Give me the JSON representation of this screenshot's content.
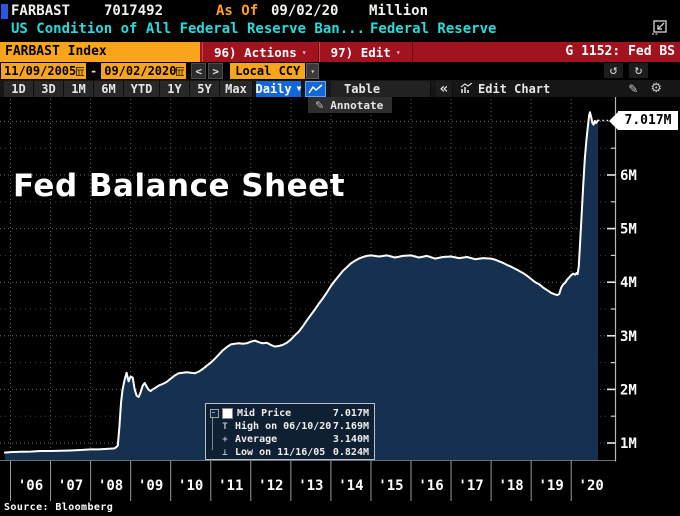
{
  "header": {
    "ticker": "FARBAST",
    "figure": "7017492",
    "as_of_label": "As Of",
    "as_of_date": "09/02/20",
    "unit": "Million",
    "description": "US Condition of All Federal Reserve Ban...",
    "provider": "Federal Reserve"
  },
  "titlebar": {
    "security": "FARBAST Index",
    "actions_label": "96) Actions",
    "edit_label": "97) Edit",
    "page_label": "G 1152: Fed BS"
  },
  "daterange": {
    "start": "11/09/2005",
    "dash": "-",
    "end": "09/02/2020",
    "prev": "<",
    "next": ">",
    "currency": "Local CCY",
    "undo": "↺",
    "redo": "↻"
  },
  "toolbar": {
    "ranges": [
      "1D",
      "3D",
      "1M",
      "6M",
      "YTD",
      "1Y",
      "5Y",
      "Max"
    ],
    "period": "Daily",
    "table_label": "Table",
    "collapse": "«",
    "edit_chart_label": "Edit Chart",
    "annotate_label": "Annotate",
    "gear": "⚙",
    "pencil": "✎"
  },
  "chart": {
    "big_title": "Fed Balance Sheet",
    "last_value_tag": "7.017M",
    "source": "Source: Bloomberg",
    "legend_rows": [
      {
        "marker": "swatch",
        "label": "Mid Price",
        "value": "7.017M"
      },
      {
        "marker": "high",
        "label": "High on 06/10/20",
        "value": "7.169M"
      },
      {
        "marker": "avg",
        "label": "Average",
        "value": "3.140M"
      },
      {
        "marker": "low",
        "label": "Low on 11/16/05",
        "value": "0.824M"
      }
    ]
  },
  "colors": {
    "amber": "#f8a51b",
    "red_bar": "#a0131f",
    "blue_button": "#1466d9",
    "cyan_text": "#2bdbdb",
    "area_fill": "#16314f",
    "line": "#ffffff"
  },
  "chart_data": {
    "type": "area",
    "title": "Fed Balance Sheet",
    "series_name": "Mid Price",
    "unit": "Million",
    "x_tick_labels": [
      "'06",
      "'07",
      "'08",
      "'09",
      "'10",
      "'11",
      "'12",
      "'13",
      "'14",
      "'15",
      "'16",
      "'17",
      "'18",
      "'19",
      "'20"
    ],
    "x_tick_years": [
      2006,
      2007,
      2008,
      2009,
      2010,
      2011,
      2012,
      2013,
      2014,
      2015,
      2016,
      2017,
      2018,
      2019,
      2020
    ],
    "y_tick_labels": [
      "1M",
      "2M",
      "3M",
      "4M",
      "5M",
      "6M"
    ],
    "y_tick_values": [
      1,
      2,
      3,
      4,
      5,
      6
    ],
    "y_minor_values": [
      1.5,
      2.5,
      3.5,
      4.5,
      5.5,
      6.5
    ],
    "ylim": [
      0.67,
      7.45
    ],
    "xlim": [
      2005.86,
      2021.1
    ],
    "grid": "dotted",
    "legend_position": "inside-bottom-left-box",
    "stats": {
      "last": 7.017,
      "last_date": "09/02/20",
      "high": 7.169,
      "high_date": "06/10/20",
      "average": 3.14,
      "low": 0.824,
      "low_date": "11/16/05"
    },
    "points": [
      [
        2005.86,
        0.82
      ],
      [
        2006.0,
        0.83
      ],
      [
        2006.25,
        0.835
      ],
      [
        2006.5,
        0.84
      ],
      [
        2006.75,
        0.85
      ],
      [
        2007.0,
        0.85
      ],
      [
        2007.25,
        0.855
      ],
      [
        2007.5,
        0.86
      ],
      [
        2007.75,
        0.87
      ],
      [
        2008.0,
        0.88
      ],
      [
        2008.2,
        0.88
      ],
      [
        2008.4,
        0.89
      ],
      [
        2008.6,
        0.9
      ],
      [
        2008.68,
        0.95
      ],
      [
        2008.72,
        1.3
      ],
      [
        2008.76,
        1.75
      ],
      [
        2008.8,
        2.0
      ],
      [
        2008.85,
        2.18
      ],
      [
        2008.9,
        2.31
      ],
      [
        2008.95,
        2.15
      ],
      [
        2009.0,
        2.24
      ],
      [
        2009.05,
        2.22
      ],
      [
        2009.1,
        2.0
      ],
      [
        2009.15,
        1.88
      ],
      [
        2009.2,
        1.86
      ],
      [
        2009.25,
        1.95
      ],
      [
        2009.3,
        2.07
      ],
      [
        2009.35,
        2.12
      ],
      [
        2009.4,
        2.05
      ],
      [
        2009.45,
        1.99
      ],
      [
        2009.5,
        1.97
      ],
      [
        2009.55,
        2.0
      ],
      [
        2009.6,
        2.02
      ],
      [
        2009.7,
        2.07
      ],
      [
        2009.8,
        2.1
      ],
      [
        2009.9,
        2.14
      ],
      [
        2010.0,
        2.2
      ],
      [
        2010.1,
        2.26
      ],
      [
        2010.2,
        2.3
      ],
      [
        2010.3,
        2.31
      ],
      [
        2010.4,
        2.32
      ],
      [
        2010.5,
        2.31
      ],
      [
        2010.6,
        2.3
      ],
      [
        2010.7,
        2.33
      ],
      [
        2010.8,
        2.38
      ],
      [
        2010.9,
        2.44
      ],
      [
        2011.0,
        2.5
      ],
      [
        2011.1,
        2.57
      ],
      [
        2011.2,
        2.65
      ],
      [
        2011.3,
        2.73
      ],
      [
        2011.4,
        2.79
      ],
      [
        2011.5,
        2.84
      ],
      [
        2011.6,
        2.85
      ],
      [
        2011.7,
        2.86
      ],
      [
        2011.8,
        2.85
      ],
      [
        2011.9,
        2.86
      ],
      [
        2012.0,
        2.89
      ],
      [
        2012.1,
        2.91
      ],
      [
        2012.2,
        2.88
      ],
      [
        2012.3,
        2.86
      ],
      [
        2012.4,
        2.87
      ],
      [
        2012.5,
        2.83
      ],
      [
        2012.6,
        2.8
      ],
      [
        2012.7,
        2.81
      ],
      [
        2012.8,
        2.83
      ],
      [
        2012.9,
        2.87
      ],
      [
        2013.0,
        2.93
      ],
      [
        2013.1,
        3.01
      ],
      [
        2013.2,
        3.08
      ],
      [
        2013.3,
        3.18
      ],
      [
        2013.4,
        3.29
      ],
      [
        2013.5,
        3.39
      ],
      [
        2013.6,
        3.49
      ],
      [
        2013.7,
        3.6
      ],
      [
        2013.8,
        3.7
      ],
      [
        2013.9,
        3.81
      ],
      [
        2014.0,
        3.93
      ],
      [
        2014.1,
        4.03
      ],
      [
        2014.2,
        4.12
      ],
      [
        2014.3,
        4.21
      ],
      [
        2014.4,
        4.28
      ],
      [
        2014.5,
        4.35
      ],
      [
        2014.6,
        4.4
      ],
      [
        2014.7,
        4.44
      ],
      [
        2014.8,
        4.47
      ],
      [
        2014.9,
        4.49
      ],
      [
        2015.0,
        4.5
      ],
      [
        2015.2,
        4.48
      ],
      [
        2015.4,
        4.5
      ],
      [
        2015.6,
        4.46
      ],
      [
        2015.8,
        4.49
      ],
      [
        2016.0,
        4.5
      ],
      [
        2016.2,
        4.46
      ],
      [
        2016.4,
        4.49
      ],
      [
        2016.6,
        4.44
      ],
      [
        2016.8,
        4.47
      ],
      [
        2017.0,
        4.48
      ],
      [
        2017.2,
        4.45
      ],
      [
        2017.4,
        4.47
      ],
      [
        2017.6,
        4.43
      ],
      [
        2017.8,
        4.45
      ],
      [
        2018.0,
        4.44
      ],
      [
        2018.1,
        4.42
      ],
      [
        2018.2,
        4.39
      ],
      [
        2018.3,
        4.36
      ],
      [
        2018.4,
        4.32
      ],
      [
        2018.5,
        4.29
      ],
      [
        2018.6,
        4.25
      ],
      [
        2018.7,
        4.21
      ],
      [
        2018.8,
        4.17
      ],
      [
        2018.9,
        4.12
      ],
      [
        2019.0,
        4.06
      ],
      [
        2019.1,
        4.0
      ],
      [
        2019.2,
        3.96
      ],
      [
        2019.3,
        3.9
      ],
      [
        2019.4,
        3.85
      ],
      [
        2019.5,
        3.8
      ],
      [
        2019.6,
        3.77
      ],
      [
        2019.65,
        3.76
      ],
      [
        2019.7,
        3.78
      ],
      [
        2019.75,
        3.9
      ],
      [
        2019.8,
        3.96
      ],
      [
        2019.85,
        3.99
      ],
      [
        2019.9,
        4.05
      ],
      [
        2019.95,
        4.09
      ],
      [
        2020.0,
        4.13
      ],
      [
        2020.05,
        4.16
      ],
      [
        2020.1,
        4.14
      ],
      [
        2020.13,
        4.17
      ],
      [
        2020.16,
        4.15
      ],
      [
        2020.19,
        4.3
      ],
      [
        2020.22,
        4.7
      ],
      [
        2020.26,
        5.25
      ],
      [
        2020.3,
        5.8
      ],
      [
        2020.34,
        6.3
      ],
      [
        2020.38,
        6.65
      ],
      [
        2020.42,
        6.93
      ],
      [
        2020.45,
        7.12
      ],
      [
        2020.47,
        7.169
      ],
      [
        2020.5,
        7.08
      ],
      [
        2020.53,
        6.97
      ],
      [
        2020.56,
        6.94
      ],
      [
        2020.59,
        7.01
      ],
      [
        2020.62,
        6.97
      ],
      [
        2020.65,
        7.0
      ],
      [
        2020.67,
        7.017
      ]
    ]
  }
}
